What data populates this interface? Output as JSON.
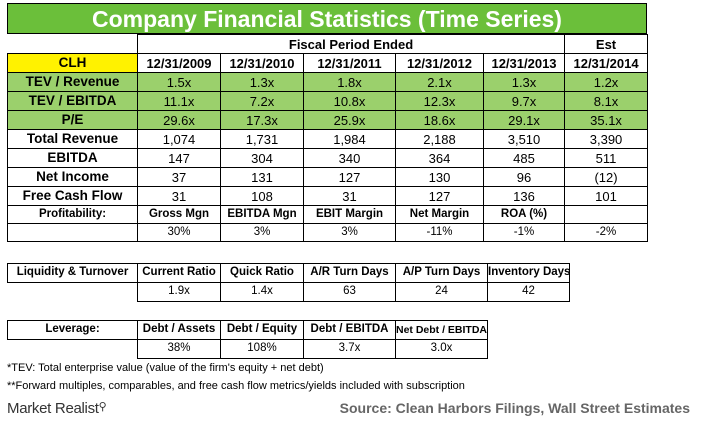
{
  "title": "Company Financial Statistics (Time Series)",
  "header": {
    "fiscal_label": "Fiscal Period Ended",
    "est_label": "Est",
    "ticker": "CLH",
    "periods": [
      "12/31/2009",
      "12/31/2010",
      "12/31/2011",
      "12/31/2012",
      "12/31/2013",
      "12/31/2014"
    ]
  },
  "multiples": [
    {
      "label": "TEV / Revenue",
      "values": [
        "1.5x",
        "1.3x",
        "1.8x",
        "2.1x",
        "1.3x",
        "1.2x"
      ]
    },
    {
      "label": "TEV / EBITDA",
      "values": [
        "11.1x",
        "7.2x",
        "10.8x",
        "12.3x",
        "9.7x",
        "8.1x"
      ]
    },
    {
      "label": "P/E",
      "values": [
        "29.6x",
        "17.3x",
        "25.9x",
        "18.6x",
        "29.1x",
        "35.1x"
      ]
    }
  ],
  "financials": [
    {
      "label": "Total Revenue",
      "values": [
        "1,074",
        "1,731",
        "1,984",
        "2,188",
        "3,510",
        "3,390"
      ]
    },
    {
      "label": "EBITDA",
      "values": [
        "147",
        "304",
        "340",
        "364",
        "485",
        "511"
      ]
    },
    {
      "label": "Net Income",
      "values": [
        "37",
        "131",
        "127",
        "130",
        "96",
        "(12)"
      ]
    },
    {
      "label": "Free Cash Flow",
      "values": [
        "31",
        "108",
        "31",
        "127",
        "136",
        "101"
      ]
    }
  ],
  "profitability": {
    "label": "Profitability:",
    "headers": [
      "Gross Mgn",
      "EBITDA Mgn",
      "EBIT Margin",
      "Net Margin",
      "ROA (%)",
      ""
    ],
    "values": [
      "30%",
      "3%",
      "3%",
      "-11%",
      "-1%",
      "-2%"
    ]
  },
  "liquidity": {
    "label": "Liquidity & Turnover",
    "headers": [
      "Current Ratio",
      "Quick Ratio",
      "A/R Turn Days",
      "A/P Turn Days",
      "Inventory Days"
    ],
    "values": [
      "1.9x",
      "1.4x",
      "63",
      "24",
      "42"
    ]
  },
  "leverage": {
    "label": "Leverage:",
    "headers": [
      "Debt / Assets",
      "Debt / Equity",
      "Debt / EBITDA",
      "Net Debt / EBITDA"
    ],
    "values": [
      "38%",
      "108%",
      "3.7x",
      "3.0x"
    ]
  },
  "footnotes": [
    "*TEV: Total enterprise value (value of the firm's equity + net debt)",
    "**Forward multiples, comparables, and free cash flow metrics/yields included with subscription"
  ],
  "logo_text": "Market Realist",
  "source": "Source: Clean Harbors Filings, Wall Street Estimates",
  "colors": {
    "title_green": "#6bbf3a",
    "row_green": "#9bd06c",
    "ticker_yellow": "#fff200"
  }
}
